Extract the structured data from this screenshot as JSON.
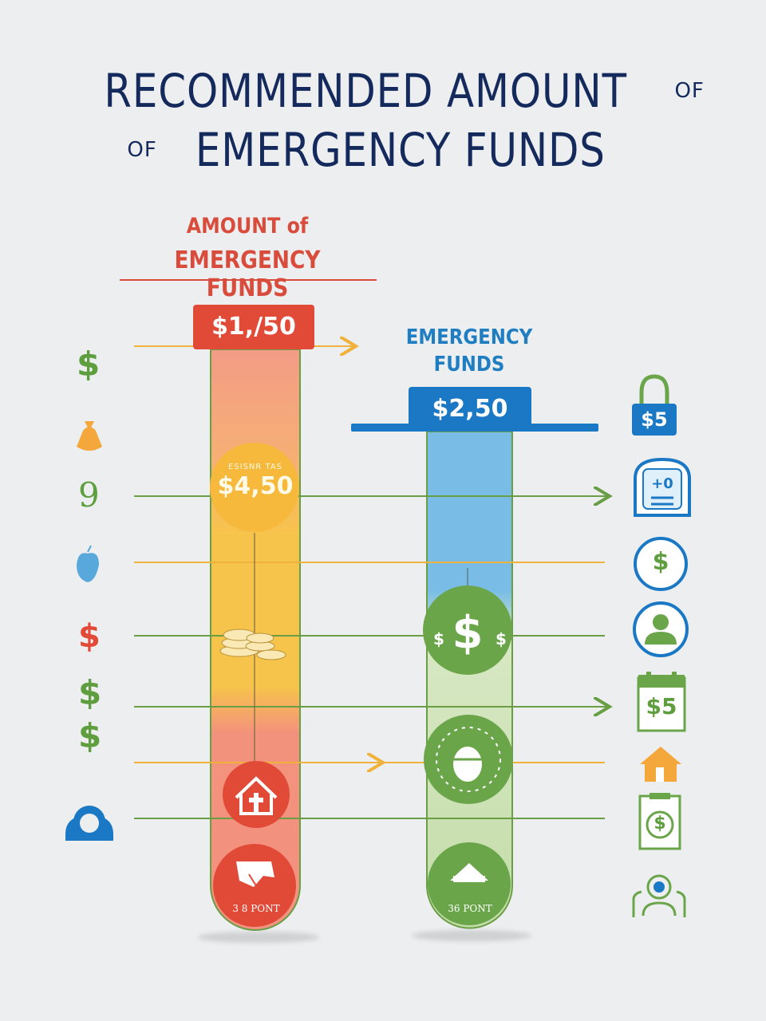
{
  "title": {
    "line1_main": "RECOMMENDED AMOUNT",
    "line1_suffix": "OF",
    "line2_prefix": "OF",
    "line2_main": "EMERGENCY FUNDS"
  },
  "left_column": {
    "heading_line1": "AMOUNT of",
    "heading_line2": "EMERGENCY FUNDS",
    "top_value": "$1,/50",
    "circle_caption": "ESISNR TAS",
    "circle_value": "$4,50",
    "bottom_label": "3 8 PONT"
  },
  "right_column": {
    "heading_line1": "EMERGENCY",
    "heading_line2": "FUNDS",
    "top_value": "$2,50",
    "bottom_label": "36 PONT"
  },
  "left_icons": {
    "dollar_1": "$",
    "nine": "9",
    "dollar_red": "$",
    "dollar_green_1": "$",
    "dollar_green_2": "$"
  },
  "right_icons": {
    "lock_value": "$5",
    "calendar_value": "$5",
    "dollar_badge": "$",
    "doc_dollar": "$"
  },
  "colors": {
    "title": "#152a5c",
    "red": "#e24a38",
    "blue": "#1b78c4",
    "green": "#5f9e3f",
    "yellow": "#f7c140",
    "orange_line": "#f0b23a"
  }
}
